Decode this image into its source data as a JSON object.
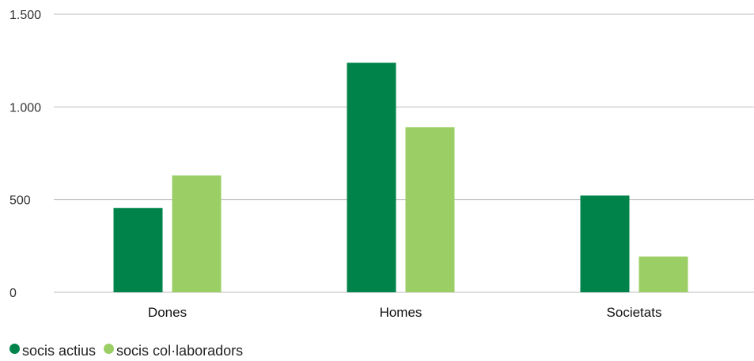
{
  "chart_data": {
    "type": "bar",
    "title": "",
    "xlabel": "",
    "ylabel": "",
    "categories": [
      "Dones",
      "Homes",
      "Societats"
    ],
    "series": [
      {
        "name": "socis actius",
        "color": "#00834A",
        "values": [
          455,
          1238,
          522
        ]
      },
      {
        "name": "socis col·laboradors",
        "color": "#9BCF66",
        "values": [
          630,
          890,
          193
        ]
      }
    ],
    "ylim": [
      0,
      1500
    ],
    "yticks": [
      0,
      500,
      1000,
      1500
    ],
    "ytick_labels": [
      "0",
      "500",
      "1.000",
      "1.500"
    ],
    "grid": true,
    "legend_position": "bottom-left"
  }
}
